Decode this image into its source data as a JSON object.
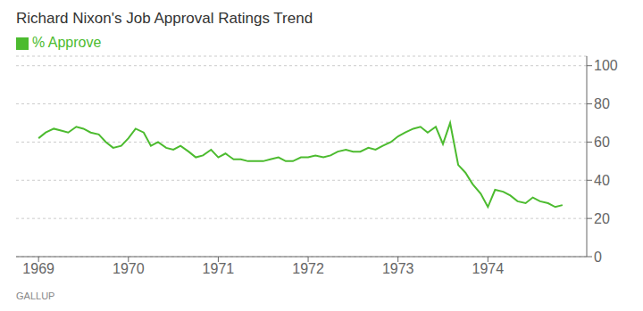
{
  "chart_data": {
    "type": "line",
    "title": "Richard Nixon's Job Approval Ratings Trend",
    "source": "GALLUP",
    "x": [
      1969.0,
      1969.08,
      1969.17,
      1969.25,
      1969.33,
      1969.42,
      1969.5,
      1969.58,
      1969.67,
      1969.75,
      1969.83,
      1969.92,
      1970.0,
      1970.08,
      1970.17,
      1970.25,
      1970.33,
      1970.42,
      1970.5,
      1970.58,
      1970.67,
      1970.75,
      1970.83,
      1970.92,
      1971.0,
      1971.08,
      1971.17,
      1971.25,
      1971.33,
      1971.42,
      1971.5,
      1971.58,
      1971.67,
      1971.75,
      1971.83,
      1971.92,
      1972.0,
      1972.08,
      1972.17,
      1972.25,
      1972.33,
      1972.42,
      1972.5,
      1972.58,
      1972.67,
      1972.75,
      1972.83,
      1972.92,
      1973.0,
      1973.08,
      1973.17,
      1973.25,
      1973.33,
      1973.42,
      1973.5,
      1973.58,
      1973.67,
      1973.75,
      1973.83,
      1973.92,
      1974.0,
      1974.08,
      1974.17,
      1974.25,
      1974.33,
      1974.42,
      1974.5,
      1974.58,
      1974.67,
      1974.75,
      1974.83
    ],
    "series": [
      {
        "name": "% Approve",
        "color": "#4cbb2f",
        "values": [
          62,
          65,
          67,
          66,
          65,
          68,
          67,
          65,
          64,
          60,
          57,
          58,
          62,
          67,
          65,
          58,
          60,
          57,
          56,
          58,
          55,
          52,
          53,
          56,
          52,
          54,
          51,
          51,
          50,
          50,
          50,
          51,
          52,
          50,
          50,
          52,
          52,
          53,
          52,
          53,
          55,
          56,
          55,
          55,
          57,
          56,
          58,
          60,
          63,
          65,
          67,
          68,
          65,
          68,
          59,
          70,
          48,
          44,
          38,
          33,
          26,
          35,
          34,
          32,
          29,
          28,
          31,
          29,
          28,
          26,
          27
        ]
      }
    ],
    "xlim": [
      1968.75,
      1975.1
    ],
    "xticks": [
      1969,
      1970,
      1971,
      1972,
      1973,
      1974
    ],
    "ylim": [
      0,
      105
    ],
    "yticks": [
      0,
      20,
      40,
      60,
      80,
      100
    ],
    "grid": true,
    "legend": "upper left"
  }
}
